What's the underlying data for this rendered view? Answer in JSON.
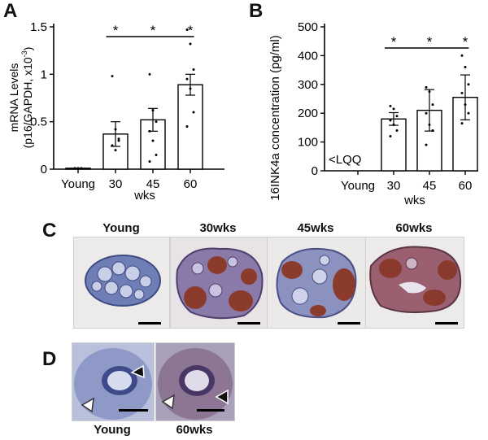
{
  "panels": {
    "a": "A",
    "b": "B",
    "c": "C",
    "d": "D"
  },
  "chart_data": [
    {
      "type": "bar",
      "panel": "A",
      "categories": [
        "Young",
        "30",
        "45",
        "60"
      ],
      "values": [
        0.01,
        0.37,
        0.52,
        0.89
      ],
      "errors": [
        0.0,
        0.13,
        0.12,
        0.11
      ],
      "points": [
        [
          0.01,
          0.01,
          0.01
        ],
        [
          0.98,
          0.42,
          0.3,
          0.25,
          0.2,
          0.32
        ],
        [
          1.0,
          0.62,
          0.5,
          0.4,
          0.3,
          0.15,
          0.08
        ],
        [
          1.47,
          1.32,
          1.05,
          0.95,
          0.85,
          0.6,
          0.45
        ]
      ],
      "ylabel_line1": "mRNA Levels",
      "ylabel_line2": "(p16/GAPDH, x10",
      "ylabel_sup": "-3",
      "ylabel_close": ")",
      "xlabel": "wks",
      "yticks": [
        "0",
        "0.5",
        "1",
        "1.5"
      ],
      "ylim": [
        0,
        1.5
      ],
      "significance": [
        "*",
        "*",
        "*"
      ]
    },
    {
      "type": "bar",
      "panel": "B",
      "categories": [
        "Young",
        "30",
        "45",
        "60"
      ],
      "values": [
        0,
        180,
        210,
        255
      ],
      "errors": [
        0,
        22,
        72,
        78
      ],
      "points": [
        [],
        [
          225,
          215,
          190,
          175,
          160,
          140,
          120
        ],
        [
          290,
          275,
          230,
          200,
          160,
          140,
          90
        ],
        [
          400,
          360,
          300,
          270,
          230,
          200,
          165
        ]
      ],
      "ylabel": "16INK4a concentration (pg/ml)",
      "xlabel": "wks",
      "yticks": [
        "0",
        "100",
        "200",
        "300",
        "400",
        "500"
      ],
      "ylim": [
        0,
        500
      ],
      "annotation": "<LQQ",
      "significance": [
        "*",
        "*",
        "*"
      ]
    }
  ],
  "panel_c": {
    "labels": [
      "Young",
      "30wks",
      "45wks",
      "60wks"
    ]
  },
  "panel_d": {
    "labels": [
      "Young",
      "60wks"
    ]
  }
}
